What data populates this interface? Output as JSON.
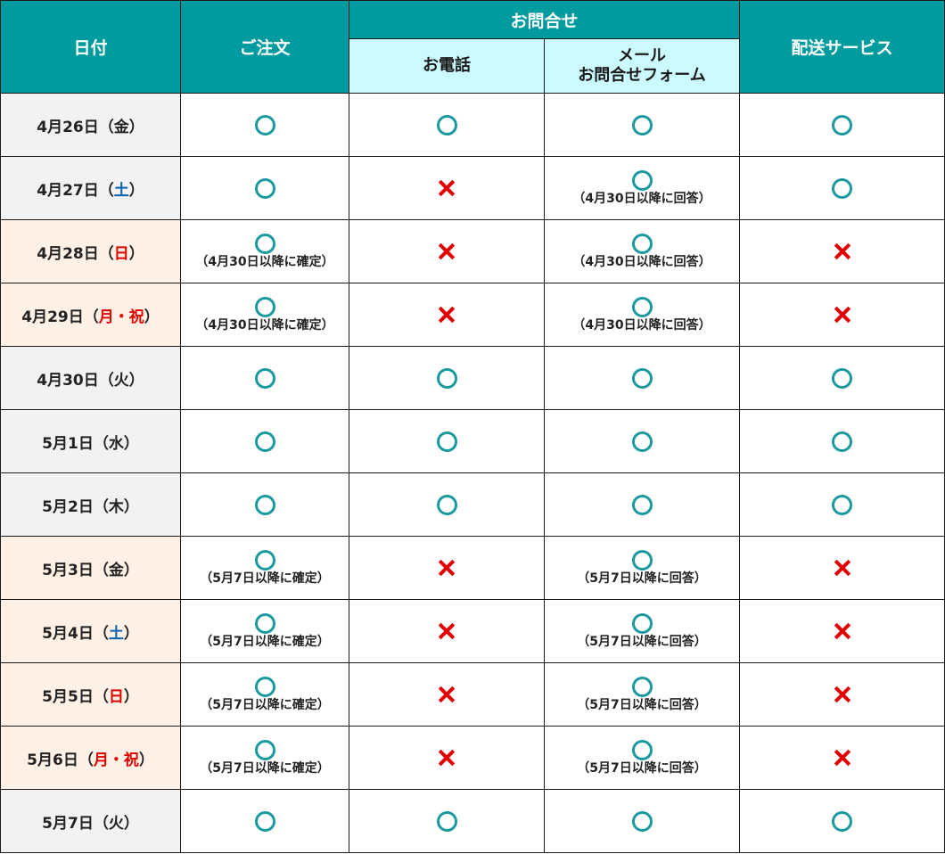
{
  "header": {
    "date": "日付",
    "order": "ご注文",
    "inquiry": "お問合せ",
    "phone": "お電話",
    "mail_line1": "メール",
    "mail_line2": "お問合せフォーム",
    "delivery": "配送サービス"
  },
  "colors": {
    "header_bg": "#009b9f",
    "subheader_bg": "#ccfbff",
    "circle": "#1a999f",
    "cross": "#e00000",
    "saturday": "#0a63b0",
    "holiday": "#e00000",
    "holiday_row_bg": "#fff1e6",
    "weekday_row_bg": "#f2f2f2"
  },
  "marks": {
    "available": "circle-icon",
    "unavailable": "cross-icon"
  },
  "rows": [
    {
      "md": "4月26日（",
      "dw": "金",
      "close": "）",
      "dwc": "",
      "bg": "weekday",
      "order": "o",
      "order_note": "",
      "phone": "o",
      "mail": "o",
      "mail_note": "",
      "delivery": "o"
    },
    {
      "md": "4月27日（",
      "dw": "土",
      "close": "）",
      "dwc": "blue",
      "bg": "weekday",
      "order": "o",
      "order_note": "",
      "phone": "x",
      "mail": "o",
      "mail_note": "（4月30日以降に回答）",
      "delivery": "o"
    },
    {
      "md": "4月28日（",
      "dw": "日",
      "close": "）",
      "dwc": "red",
      "bg": "holiday",
      "order": "o",
      "order_note": "（4月30日以降に確定）",
      "phone": "x",
      "mail": "o",
      "mail_note": "（4月30日以降に回答）",
      "delivery": "x"
    },
    {
      "md": "4月29日（",
      "dw": "月・祝",
      "close": "）",
      "dwc": "red",
      "bg": "holiday",
      "order": "o",
      "order_note": "（4月30日以降に確定）",
      "phone": "x",
      "mail": "o",
      "mail_note": "（4月30日以降に回答）",
      "delivery": "x"
    },
    {
      "md": "4月30日（",
      "dw": "火",
      "close": "）",
      "dwc": "",
      "bg": "weekday",
      "order": "o",
      "order_note": "",
      "phone": "o",
      "mail": "o",
      "mail_note": "",
      "delivery": "o"
    },
    {
      "md": "5月1日（",
      "dw": "水",
      "close": "）",
      "dwc": "",
      "bg": "weekday",
      "order": "o",
      "order_note": "",
      "phone": "o",
      "mail": "o",
      "mail_note": "",
      "delivery": "o"
    },
    {
      "md": "5月2日（",
      "dw": "木",
      "close": "）",
      "dwc": "",
      "bg": "weekday",
      "order": "o",
      "order_note": "",
      "phone": "o",
      "mail": "o",
      "mail_note": "",
      "delivery": "o"
    },
    {
      "md": "5月3日（",
      "dw": "金",
      "close": "）",
      "dwc": "",
      "bg": "holiday",
      "order": "o",
      "order_note": "（5月7日以降に確定）",
      "phone": "x",
      "mail": "o",
      "mail_note": "（5月7日以降に回答）",
      "delivery": "x"
    },
    {
      "md": "5月4日（",
      "dw": "土",
      "close": "）",
      "dwc": "blue",
      "bg": "holiday",
      "order": "o",
      "order_note": "（5月7日以降に確定）",
      "phone": "x",
      "mail": "o",
      "mail_note": "（5月7日以降に回答）",
      "delivery": "x"
    },
    {
      "md": "5月5日（",
      "dw": "日",
      "close": "）",
      "dwc": "red",
      "bg": "holiday",
      "order": "o",
      "order_note": "（5月7日以降に確定）",
      "phone": "x",
      "mail": "o",
      "mail_note": "（5月7日以降に回答）",
      "delivery": "x"
    },
    {
      "md": "5月6日（",
      "dw": "月・祝",
      "close": "）",
      "dwc": "red",
      "bg": "holiday",
      "order": "o",
      "order_note": "（5月7日以降に確定）",
      "phone": "x",
      "mail": "o",
      "mail_note": "（5月7日以降に回答）",
      "delivery": "x"
    },
    {
      "md": "5月7日（",
      "dw": "火",
      "close": "）",
      "dwc": "",
      "bg": "weekday",
      "order": "o",
      "order_note": "",
      "phone": "o",
      "mail": "o",
      "mail_note": "",
      "delivery": "o"
    }
  ]
}
